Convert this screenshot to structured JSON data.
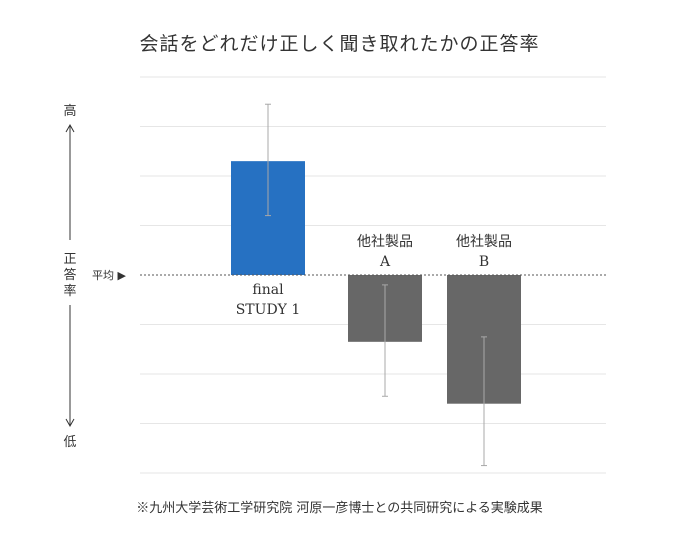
{
  "title": "会話をどれだけ正しく聞き取れたかの正答率",
  "footnote": "※九州大学芸術工学研究院 河原一彦博士との共同研究による実験成果",
  "chart_data": {
    "type": "bar",
    "title": "会話をどれだけ正しく聞き取れたかの正答率",
    "ylabel": "正答率",
    "y_high_label": "高",
    "y_low_label": "低",
    "baseline_label": "平均 ▶",
    "baseline": 0,
    "ylim": [
      -4,
      4
    ],
    "grid": true,
    "error_bars": true,
    "categories": [
      "final STUDY 1",
      "他社製品 A",
      "他社製品 B"
    ],
    "category_lines": [
      [
        "final",
        "STUDY 1"
      ],
      [
        "他社製品",
        "A"
      ],
      [
        "他社製品",
        "B"
      ]
    ],
    "values": [
      2.3,
      -1.35,
      -2.6
    ],
    "error_low": [
      1.2,
      -2.45,
      -3.85
    ],
    "error_high": [
      3.45,
      -0.2,
      -1.25
    ],
    "colors": [
      "#2671C2",
      "#676767",
      "#676767"
    ],
    "error_color": "#A8A8A8"
  }
}
